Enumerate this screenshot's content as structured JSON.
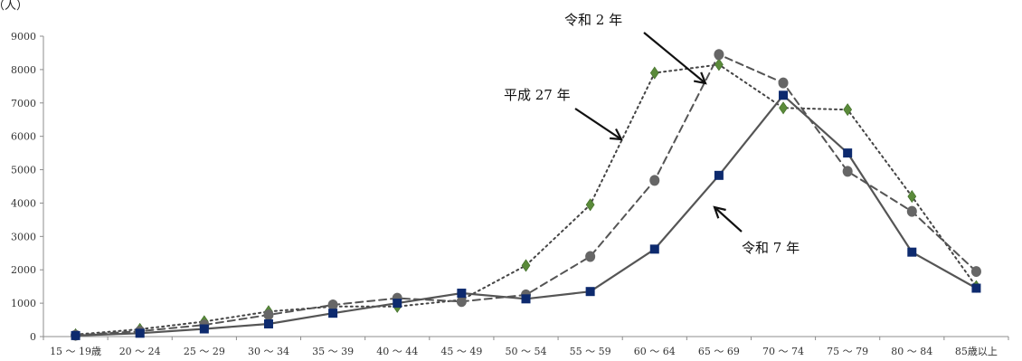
{
  "chart_data": {
    "type": "line",
    "unit_label": "（人）",
    "categories": [
      "15 ～ 19歳",
      "20 ～ 24",
      "25 ～ 29",
      "30 ～ 34",
      "35 ～ 39",
      "40 ～ 44",
      "45 ～ 49",
      "50 ～ 54",
      "55 ～ 59",
      "60 ～ 64",
      "65 ～ 69",
      "70 ～ 74",
      "75 ～ 79",
      "80 ～ 84",
      "85歳以上"
    ],
    "ylim": [
      0,
      9000
    ],
    "yticks": [
      0,
      1000,
      2000,
      3000,
      4000,
      5000,
      6000,
      7000,
      8000,
      9000
    ],
    "grid": false,
    "series": [
      {
        "name": "平成 27 年",
        "style": "dotted",
        "marker": "diamond",
        "line_color": "#444444",
        "marker_color": "#5a8a3a",
        "values": [
          60,
          220,
          450,
          750,
          900,
          900,
          1100,
          2130,
          3950,
          7900,
          8150,
          6850,
          6800,
          4200,
          1500
        ]
      },
      {
        "name": "令和 2 年",
        "style": "dashed",
        "marker": "circle",
        "line_color": "#555555",
        "marker_color": "#666666",
        "values": [
          40,
          160,
          350,
          650,
          950,
          1150,
          1050,
          1250,
          2400,
          4680,
          8450,
          7600,
          4950,
          3750,
          1950
        ]
      },
      {
        "name": "令和 7 年",
        "style": "solid",
        "marker": "square",
        "line_color": "#555555",
        "marker_color": "#0d2a6e",
        "values": [
          30,
          100,
          230,
          380,
          700,
          1000,
          1300,
          1130,
          1350,
          2620,
          4830,
          7230,
          5500,
          2530,
          1450
        ]
      }
    ]
  }
}
